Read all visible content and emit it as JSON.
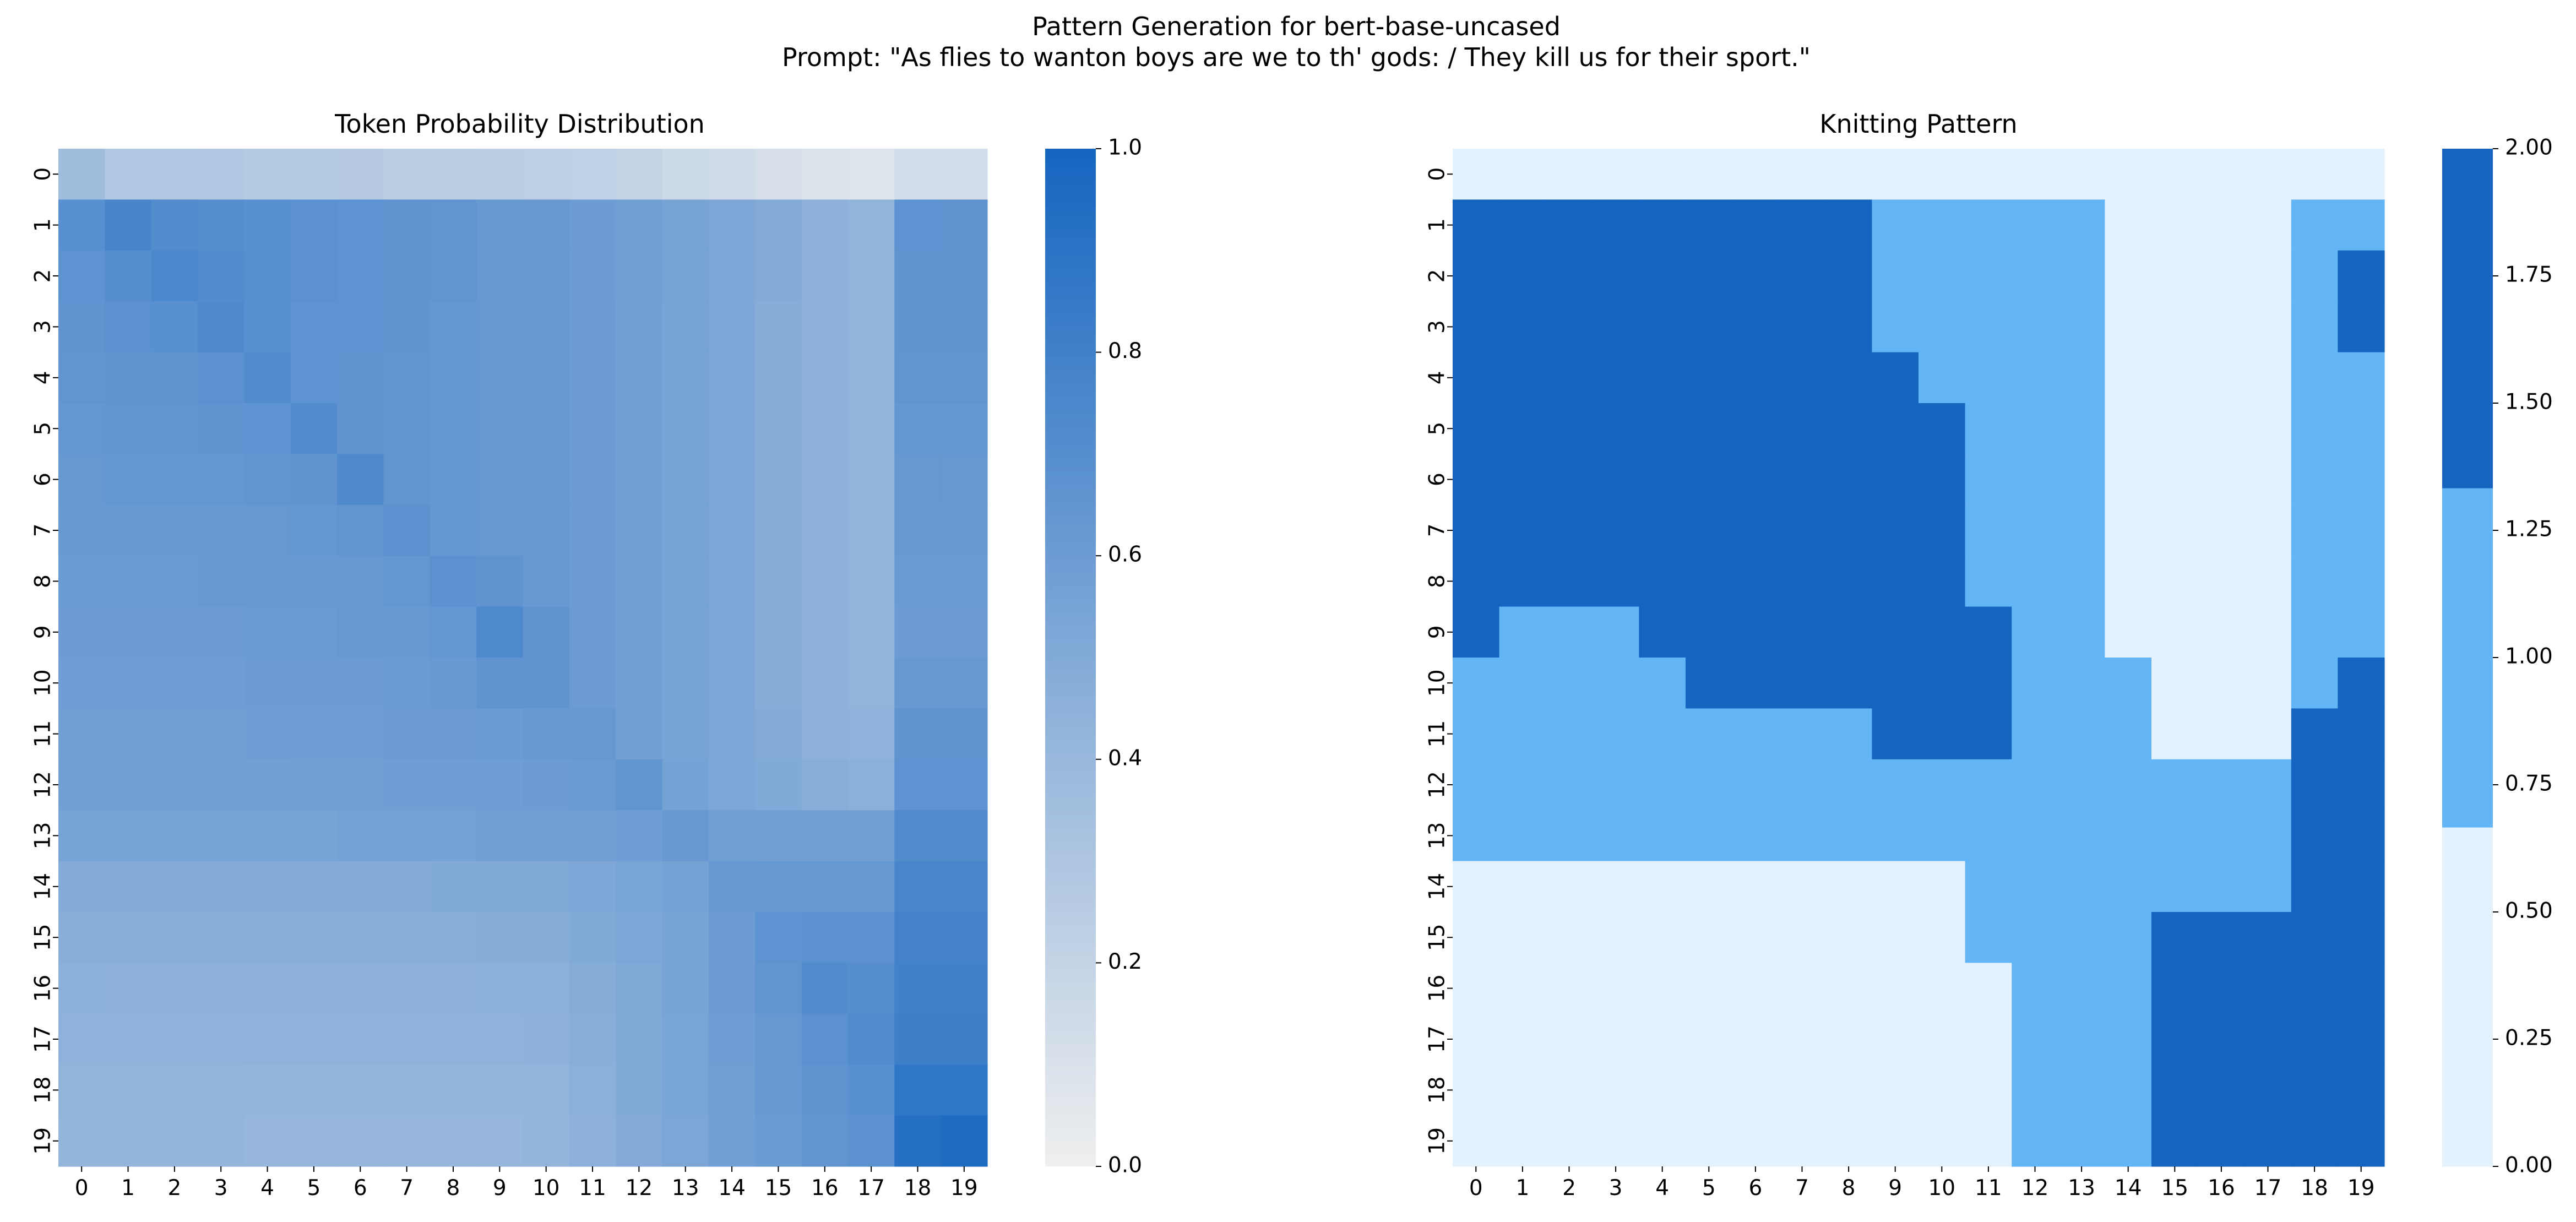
{
  "suptitle_line1": "Pattern Generation for bert-base-uncased",
  "suptitle_line2": "Prompt: \"As flies to wanton boys are we to th' gods: / They kill us for their sport.\"",
  "chart_data": [
    {
      "type": "heatmap",
      "title": "Token Probability Distribution",
      "x_ticks": [
        "0",
        "1",
        "2",
        "3",
        "4",
        "5",
        "6",
        "7",
        "8",
        "9",
        "10",
        "11",
        "12",
        "13",
        "14",
        "15",
        "16",
        "17",
        "18",
        "19"
      ],
      "y_ticks": [
        "0",
        "1",
        "2",
        "3",
        "4",
        "5",
        "6",
        "7",
        "8",
        "9",
        "10",
        "11",
        "12",
        "13",
        "14",
        "15",
        "16",
        "17",
        "18",
        "19"
      ],
      "colorbar": {
        "min": 0.0,
        "max": 1.0,
        "ticks": [
          "0.0",
          "0.2",
          "0.4",
          "0.6",
          "0.8",
          "1.0"
        ],
        "tick_values": [
          0,
          0.2,
          0.4,
          0.6,
          0.8,
          1.0
        ],
        "low_color": "#efefef",
        "high_color": "#1565c0"
      },
      "values": [
        [
          0.36,
          0.29,
          0.29,
          0.28,
          0.27,
          0.27,
          0.26,
          0.25,
          0.25,
          0.24,
          0.23,
          0.22,
          0.2,
          0.16,
          0.14,
          0.12,
          0.09,
          0.08,
          0.13,
          0.13
        ],
        [
          0.69,
          0.77,
          0.72,
          0.7,
          0.69,
          0.68,
          0.67,
          0.66,
          0.65,
          0.63,
          0.62,
          0.6,
          0.58,
          0.55,
          0.52,
          0.49,
          0.45,
          0.43,
          0.67,
          0.66
        ],
        [
          0.67,
          0.7,
          0.75,
          0.71,
          0.69,
          0.68,
          0.67,
          0.66,
          0.65,
          0.63,
          0.62,
          0.6,
          0.58,
          0.55,
          0.52,
          0.49,
          0.45,
          0.43,
          0.66,
          0.66
        ],
        [
          0.66,
          0.68,
          0.69,
          0.73,
          0.69,
          0.67,
          0.67,
          0.66,
          0.64,
          0.63,
          0.62,
          0.6,
          0.57,
          0.55,
          0.52,
          0.48,
          0.45,
          0.43,
          0.66,
          0.66
        ],
        [
          0.65,
          0.66,
          0.66,
          0.68,
          0.72,
          0.67,
          0.66,
          0.65,
          0.64,
          0.63,
          0.62,
          0.6,
          0.57,
          0.55,
          0.52,
          0.48,
          0.45,
          0.43,
          0.65,
          0.65
        ],
        [
          0.64,
          0.65,
          0.65,
          0.66,
          0.67,
          0.72,
          0.66,
          0.65,
          0.64,
          0.63,
          0.62,
          0.6,
          0.57,
          0.55,
          0.52,
          0.48,
          0.45,
          0.43,
          0.64,
          0.64
        ],
        [
          0.63,
          0.64,
          0.64,
          0.64,
          0.65,
          0.66,
          0.73,
          0.65,
          0.64,
          0.63,
          0.62,
          0.6,
          0.57,
          0.55,
          0.52,
          0.48,
          0.45,
          0.43,
          0.63,
          0.63
        ],
        [
          0.62,
          0.63,
          0.63,
          0.63,
          0.63,
          0.64,
          0.65,
          0.68,
          0.64,
          0.63,
          0.62,
          0.6,
          0.57,
          0.55,
          0.52,
          0.48,
          0.45,
          0.43,
          0.62,
          0.62
        ],
        [
          0.61,
          0.61,
          0.61,
          0.62,
          0.62,
          0.62,
          0.63,
          0.64,
          0.68,
          0.66,
          0.62,
          0.6,
          0.57,
          0.55,
          0.52,
          0.48,
          0.45,
          0.43,
          0.61,
          0.61
        ],
        [
          0.6,
          0.6,
          0.6,
          0.6,
          0.61,
          0.61,
          0.62,
          0.62,
          0.64,
          0.74,
          0.66,
          0.6,
          0.57,
          0.55,
          0.52,
          0.48,
          0.45,
          0.43,
          0.6,
          0.6
        ],
        [
          0.59,
          0.59,
          0.59,
          0.59,
          0.6,
          0.6,
          0.6,
          0.61,
          0.62,
          0.66,
          0.66,
          0.6,
          0.57,
          0.55,
          0.52,
          0.48,
          0.45,
          0.43,
          0.62,
          0.62
        ],
        [
          0.58,
          0.58,
          0.58,
          0.58,
          0.59,
          0.59,
          0.59,
          0.6,
          0.6,
          0.61,
          0.62,
          0.63,
          0.57,
          0.55,
          0.52,
          0.49,
          0.45,
          0.44,
          0.66,
          0.66
        ],
        [
          0.57,
          0.57,
          0.57,
          0.57,
          0.57,
          0.58,
          0.58,
          0.59,
          0.59,
          0.59,
          0.6,
          0.61,
          0.65,
          0.56,
          0.53,
          0.5,
          0.47,
          0.46,
          0.67,
          0.67
        ],
        [
          0.55,
          0.55,
          0.55,
          0.55,
          0.55,
          0.55,
          0.56,
          0.56,
          0.56,
          0.57,
          0.57,
          0.58,
          0.59,
          0.62,
          0.57,
          0.57,
          0.57,
          0.57,
          0.72,
          0.72
        ],
        [
          0.49,
          0.49,
          0.49,
          0.49,
          0.49,
          0.49,
          0.49,
          0.49,
          0.5,
          0.5,
          0.51,
          0.52,
          0.54,
          0.56,
          0.62,
          0.63,
          0.63,
          0.63,
          0.76,
          0.76
        ],
        [
          0.47,
          0.47,
          0.47,
          0.47,
          0.47,
          0.47,
          0.47,
          0.47,
          0.47,
          0.48,
          0.48,
          0.5,
          0.52,
          0.55,
          0.6,
          0.67,
          0.68,
          0.68,
          0.79,
          0.79
        ],
        [
          0.46,
          0.45,
          0.45,
          0.45,
          0.45,
          0.45,
          0.45,
          0.45,
          0.45,
          0.46,
          0.46,
          0.48,
          0.51,
          0.55,
          0.6,
          0.65,
          0.72,
          0.7,
          0.8,
          0.8
        ],
        [
          0.44,
          0.44,
          0.44,
          0.44,
          0.44,
          0.44,
          0.44,
          0.44,
          0.44,
          0.44,
          0.45,
          0.47,
          0.5,
          0.54,
          0.59,
          0.63,
          0.68,
          0.72,
          0.81,
          0.81
        ],
        [
          0.43,
          0.43,
          0.43,
          0.43,
          0.42,
          0.42,
          0.42,
          0.42,
          0.42,
          0.42,
          0.43,
          0.46,
          0.5,
          0.54,
          0.58,
          0.62,
          0.66,
          0.69,
          0.88,
          0.88
        ],
        [
          0.42,
          0.42,
          0.42,
          0.42,
          0.41,
          0.41,
          0.41,
          0.41,
          0.41,
          0.41,
          0.42,
          0.45,
          0.49,
          0.53,
          0.57,
          0.61,
          0.65,
          0.68,
          0.92,
          0.96
        ]
      ]
    },
    {
      "type": "heatmap",
      "title": "Knitting Pattern",
      "x_ticks": [
        "0",
        "1",
        "2",
        "3",
        "4",
        "5",
        "6",
        "7",
        "8",
        "9",
        "10",
        "11",
        "12",
        "13",
        "14",
        "15",
        "16",
        "17",
        "18",
        "19"
      ],
      "y_ticks": [
        "0",
        "1",
        "2",
        "3",
        "4",
        "5",
        "6",
        "7",
        "8",
        "9",
        "10",
        "11",
        "12",
        "13",
        "14",
        "15",
        "16",
        "17",
        "18",
        "19"
      ],
      "colorbar": {
        "min": 0.0,
        "max": 2.0,
        "ticks": [
          "0.00",
          "0.25",
          "0.50",
          "0.75",
          "1.00",
          "1.25",
          "1.50",
          "1.75",
          "2.00"
        ],
        "tick_values": [
          0,
          0.25,
          0.5,
          0.75,
          1.0,
          1.25,
          1.5,
          1.75,
          2.0
        ],
        "colors": [
          "#e3f2fd",
          "#64b5f6",
          "#1565c0"
        ]
      },
      "values": [
        [
          0,
          0,
          0,
          0,
          0,
          0,
          0,
          0,
          0,
          0,
          0,
          0,
          0,
          0,
          0,
          0,
          0,
          0,
          0,
          0
        ],
        [
          2,
          2,
          2,
          2,
          2,
          2,
          2,
          2,
          2,
          1,
          1,
          1,
          1,
          1,
          0,
          0,
          0,
          0,
          1,
          1
        ],
        [
          2,
          2,
          2,
          2,
          2,
          2,
          2,
          2,
          2,
          1,
          1,
          1,
          1,
          1,
          0,
          0,
          0,
          0,
          1,
          2
        ],
        [
          2,
          2,
          2,
          2,
          2,
          2,
          2,
          2,
          2,
          1,
          1,
          1,
          1,
          1,
          0,
          0,
          0,
          0,
          1,
          2
        ],
        [
          2,
          2,
          2,
          2,
          2,
          2,
          2,
          2,
          2,
          2,
          1,
          1,
          1,
          1,
          0,
          0,
          0,
          0,
          1,
          1
        ],
        [
          2,
          2,
          2,
          2,
          2,
          2,
          2,
          2,
          2,
          2,
          2,
          1,
          1,
          1,
          0,
          0,
          0,
          0,
          1,
          1
        ],
        [
          2,
          2,
          2,
          2,
          2,
          2,
          2,
          2,
          2,
          2,
          2,
          1,
          1,
          1,
          0,
          0,
          0,
          0,
          1,
          1
        ],
        [
          2,
          2,
          2,
          2,
          2,
          2,
          2,
          2,
          2,
          2,
          2,
          1,
          1,
          1,
          0,
          0,
          0,
          0,
          1,
          1
        ],
        [
          2,
          2,
          2,
          2,
          2,
          2,
          2,
          2,
          2,
          2,
          2,
          1,
          1,
          1,
          0,
          0,
          0,
          0,
          1,
          1
        ],
        [
          2,
          1,
          1,
          1,
          2,
          2,
          2,
          2,
          2,
          2,
          2,
          2,
          1,
          1,
          0,
          0,
          0,
          0,
          1,
          1
        ],
        [
          1,
          1,
          1,
          1,
          1,
          2,
          2,
          2,
          2,
          2,
          2,
          2,
          1,
          1,
          1,
          0,
          0,
          0,
          1,
          2
        ],
        [
          1,
          1,
          1,
          1,
          1,
          1,
          1,
          1,
          1,
          2,
          2,
          2,
          1,
          1,
          1,
          0,
          0,
          0,
          2,
          2
        ],
        [
          1,
          1,
          1,
          1,
          1,
          1,
          1,
          1,
          1,
          1,
          1,
          1,
          1,
          1,
          1,
          1,
          1,
          1,
          2,
          2
        ],
        [
          1,
          1,
          1,
          1,
          1,
          1,
          1,
          1,
          1,
          1,
          1,
          1,
          1,
          1,
          1,
          1,
          1,
          1,
          2,
          2
        ],
        [
          0,
          0,
          0,
          0,
          0,
          0,
          0,
          0,
          0,
          0,
          0,
          1,
          1,
          1,
          1,
          1,
          1,
          1,
          2,
          2
        ],
        [
          0,
          0,
          0,
          0,
          0,
          0,
          0,
          0,
          0,
          0,
          0,
          1,
          1,
          1,
          1,
          2,
          2,
          2,
          2,
          2
        ],
        [
          0,
          0,
          0,
          0,
          0,
          0,
          0,
          0,
          0,
          0,
          0,
          0,
          1,
          1,
          1,
          2,
          2,
          2,
          2,
          2
        ],
        [
          0,
          0,
          0,
          0,
          0,
          0,
          0,
          0,
          0,
          0,
          0,
          0,
          1,
          1,
          1,
          2,
          2,
          2,
          2,
          2
        ],
        [
          0,
          0,
          0,
          0,
          0,
          0,
          0,
          0,
          0,
          0,
          0,
          0,
          1,
          1,
          1,
          2,
          2,
          2,
          2,
          2
        ],
        [
          0,
          0,
          0,
          0,
          0,
          0,
          0,
          0,
          0,
          0,
          0,
          0,
          1,
          1,
          1,
          2,
          2,
          2,
          2,
          2
        ]
      ]
    }
  ]
}
